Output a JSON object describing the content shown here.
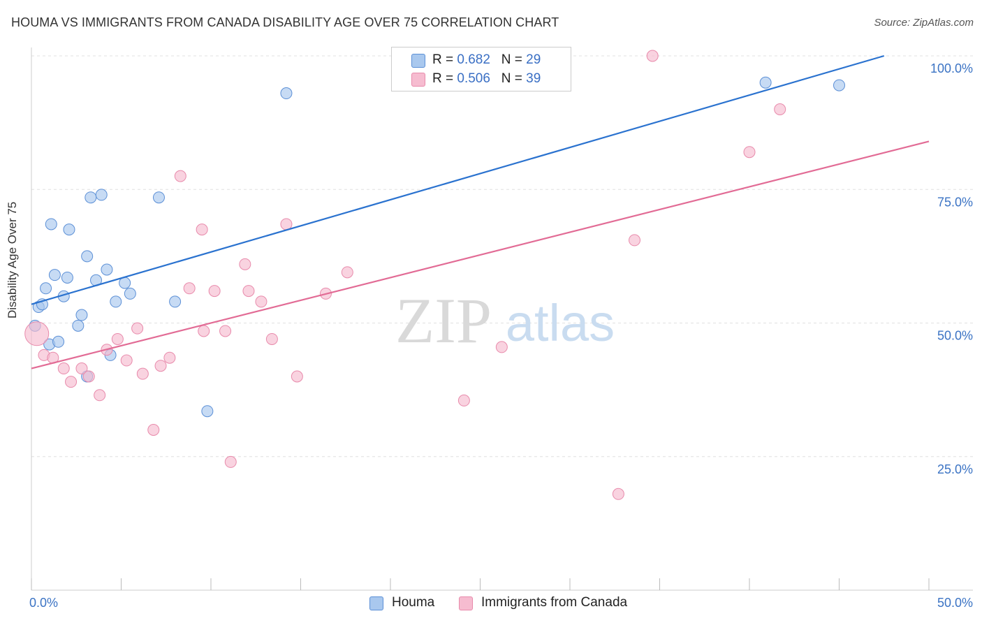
{
  "title": "HOUMA VS IMMIGRANTS FROM CANADA DISABILITY AGE OVER 75 CORRELATION CHART",
  "source": "Source: ZipAtlas.com",
  "watermark": {
    "zip": "ZIP",
    "atlas": "atlas"
  },
  "legend_stats": [
    {
      "r_label": "R =",
      "r_value": "0.682",
      "n_label": "N =",
      "n_value": "29"
    },
    {
      "r_label": "R =",
      "r_value": "0.506",
      "n_label": "N =",
      "n_value": "39"
    }
  ],
  "chart_data": {
    "type": "scatter",
    "title": "HOUMA VS IMMIGRANTS FROM CANADA DISABILITY AGE OVER 75 CORRELATION CHART",
    "xlabel": "",
    "ylabel": "Disability Age Over 75",
    "xlim": [
      0,
      50
    ],
    "ylim": [
      0,
      100
    ],
    "x_tick_labels": [
      "0.0%",
      "50.0%"
    ],
    "y_tick_labels": [
      "25.0%",
      "50.0%",
      "75.0%",
      "100.0%"
    ],
    "y_ticks": [
      25,
      50,
      75,
      100
    ],
    "x_minor_ticks": [
      0,
      5,
      10,
      15,
      20,
      25,
      30,
      35,
      40,
      45,
      50
    ],
    "grid": true,
    "legend_position": "bottom-center",
    "colors": {
      "houma_fill": "#a9c8ee",
      "houma_stroke": "#5b8fd6",
      "houma_line": "#2a72cf",
      "canada_fill": "#f6bcd0",
      "canada_stroke": "#e88aab",
      "canada_line": "#e26b95",
      "tick_label": "#3b73c4",
      "grid": "#e0e0e0"
    },
    "series": [
      {
        "name": "Houma",
        "r": 0.682,
        "n": 29,
        "trend": {
          "x0": 0,
          "y0": 53.5,
          "x1": 47.5,
          "y1": 100
        },
        "points": [
          {
            "x": 0.2,
            "y": 49.5
          },
          {
            "x": 0.4,
            "y": 53
          },
          {
            "x": 0.6,
            "y": 53.5
          },
          {
            "x": 0.8,
            "y": 56.5
          },
          {
            "x": 1.0,
            "y": 46
          },
          {
            "x": 1.1,
            "y": 68.5
          },
          {
            "x": 1.3,
            "y": 59
          },
          {
            "x": 1.5,
            "y": 46.5
          },
          {
            "x": 1.8,
            "y": 55
          },
          {
            "x": 2.0,
            "y": 58.5
          },
          {
            "x": 2.1,
            "y": 67.5
          },
          {
            "x": 2.6,
            "y": 49.5
          },
          {
            "x": 2.8,
            "y": 51.5
          },
          {
            "x": 3.1,
            "y": 62.5
          },
          {
            "x": 3.1,
            "y": 40
          },
          {
            "x": 3.3,
            "y": 73.5
          },
          {
            "x": 3.6,
            "y": 58
          },
          {
            "x": 3.9,
            "y": 74
          },
          {
            "x": 4.2,
            "y": 60
          },
          {
            "x": 4.4,
            "y": 44
          },
          {
            "x": 4.7,
            "y": 54
          },
          {
            "x": 5.2,
            "y": 57.5
          },
          {
            "x": 5.5,
            "y": 55.5
          },
          {
            "x": 7.1,
            "y": 73.5
          },
          {
            "x": 8.0,
            "y": 54
          },
          {
            "x": 9.8,
            "y": 33.5
          },
          {
            "x": 14.2,
            "y": 93
          },
          {
            "x": 40.9,
            "y": 95
          },
          {
            "x": 45.0,
            "y": 94.5
          }
        ]
      },
      {
        "name": "Immigrants from Canada",
        "r": 0.506,
        "n": 39,
        "trend": {
          "x0": 0,
          "y0": 41.5,
          "x1": 50,
          "y1": 84
        },
        "points": [
          {
            "x": 0.3,
            "y": 48
          },
          {
            "x": 0.7,
            "y": 44
          },
          {
            "x": 1.2,
            "y": 43.5
          },
          {
            "x": 1.8,
            "y": 41.5
          },
          {
            "x": 2.2,
            "y": 39
          },
          {
            "x": 2.8,
            "y": 41.5
          },
          {
            "x": 3.2,
            "y": 40
          },
          {
            "x": 3.8,
            "y": 36.5
          },
          {
            "x": 4.2,
            "y": 45
          },
          {
            "x": 4.8,
            "y": 47
          },
          {
            "x": 5.3,
            "y": 43
          },
          {
            "x": 5.9,
            "y": 49
          },
          {
            "x": 6.2,
            "y": 40.5
          },
          {
            "x": 6.8,
            "y": 30
          },
          {
            "x": 7.2,
            "y": 42
          },
          {
            "x": 7.7,
            "y": 43.5
          },
          {
            "x": 8.3,
            "y": 77.5
          },
          {
            "x": 8.8,
            "y": 56.5
          },
          {
            "x": 9.5,
            "y": 67.5
          },
          {
            "x": 9.6,
            "y": 48.5
          },
          {
            "x": 10.2,
            "y": 56
          },
          {
            "x": 10.8,
            "y": 48.5
          },
          {
            "x": 11.1,
            "y": 24
          },
          {
            "x": 11.9,
            "y": 61
          },
          {
            "x": 12.1,
            "y": 56
          },
          {
            "x": 12.8,
            "y": 54
          },
          {
            "x": 13.4,
            "y": 47
          },
          {
            "x": 14.2,
            "y": 68.5
          },
          {
            "x": 14.8,
            "y": 40
          },
          {
            "x": 16.4,
            "y": 55.5
          },
          {
            "x": 17.6,
            "y": 59.5
          },
          {
            "x": 20.4,
            "y": 100
          },
          {
            "x": 24.1,
            "y": 35.5
          },
          {
            "x": 26.2,
            "y": 45.5
          },
          {
            "x": 32.7,
            "y": 18
          },
          {
            "x": 33.6,
            "y": 65.5
          },
          {
            "x": 34.6,
            "y": 100
          },
          {
            "x": 40.0,
            "y": 82
          },
          {
            "x": 41.7,
            "y": 90
          }
        ]
      }
    ]
  }
}
